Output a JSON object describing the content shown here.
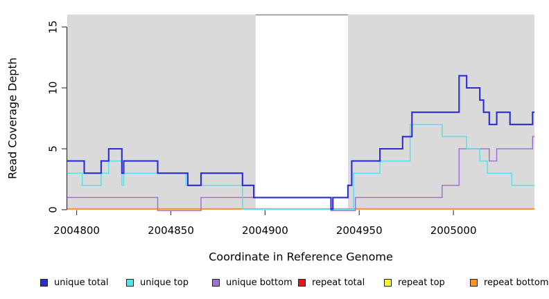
{
  "chart_data": {
    "type": "line",
    "subtype": "step",
    "title": "",
    "xlabel": "Coordinate in Reference Genome",
    "ylabel": "Read Coverage Depth",
    "xlim": [
      2004795,
      2005043
    ],
    "ylim": [
      0,
      16
    ],
    "xticks": [
      2004800,
      2004850,
      2004900,
      2004950,
      2005000
    ],
    "yticks": [
      0,
      5,
      10,
      15
    ],
    "grid": false,
    "plot_bg_color": "#dadada",
    "highlight_region": {
      "x1": 2004895,
      "x2": 2004944,
      "color": "#ffffff",
      "top_border_color": "#8a8a8a"
    },
    "legend_position": "bottom",
    "series": [
      {
        "name": "unique total",
        "color": "#2b2bd8",
        "steps": [
          [
            2004795,
            4
          ],
          [
            2004804,
            3
          ],
          [
            2004813,
            4
          ],
          [
            2004817,
            5
          ],
          [
            2004824,
            3
          ],
          [
            2004825,
            4
          ],
          [
            2004843,
            3
          ],
          [
            2004859,
            2
          ],
          [
            2004866,
            3
          ],
          [
            2004888,
            2
          ],
          [
            2004894,
            1
          ],
          [
            2004935,
            0
          ],
          [
            2004936,
            1
          ],
          [
            2004944,
            2
          ],
          [
            2004946,
            4
          ],
          [
            2004961,
            5
          ],
          [
            2004973,
            6
          ],
          [
            2004978,
            8
          ],
          [
            2005003,
            11
          ],
          [
            2005007,
            10
          ],
          [
            2005014,
            9
          ],
          [
            2005016,
            8
          ],
          [
            2005019,
            7
          ],
          [
            2005023,
            8
          ],
          [
            2005030,
            7
          ],
          [
            2005042,
            8
          ]
        ]
      },
      {
        "name": "unique top",
        "color": "#55e0ec",
        "steps": [
          [
            2004795,
            3
          ],
          [
            2004803,
            2
          ],
          [
            2004813,
            3
          ],
          [
            2004817,
            4
          ],
          [
            2004824,
            2
          ],
          [
            2004825,
            3
          ],
          [
            2004858,
            2
          ],
          [
            2004888,
            0
          ],
          [
            2004947,
            3
          ],
          [
            2004961,
            4
          ],
          [
            2004977,
            7
          ],
          [
            2004994,
            6
          ],
          [
            2005007,
            5
          ],
          [
            2005014,
            4
          ],
          [
            2005018,
            3
          ],
          [
            2005031,
            2
          ]
        ]
      },
      {
        "name": "unique bottom",
        "color": "#a36fd4",
        "steps": [
          [
            2004795,
            1
          ],
          [
            2004843,
            0
          ],
          [
            2004866,
            1
          ],
          [
            2004935,
            0
          ],
          [
            2004948,
            1
          ],
          [
            2004994,
            2
          ],
          [
            2005003,
            5
          ],
          [
            2005019,
            4
          ],
          [
            2005023,
            5
          ],
          [
            2005042,
            6
          ]
        ]
      },
      {
        "name": "repeat total",
        "color": "#e81717",
        "steps": [
          [
            2004795,
            0
          ]
        ]
      },
      {
        "name": "repeat top",
        "color": "#f6f62c",
        "steps": [
          [
            2004795,
            0
          ]
        ]
      },
      {
        "name": "repeat bottom",
        "color": "#ff9420",
        "steps": [
          [
            2004795,
            0
          ]
        ]
      }
    ],
    "baseline_overlap_segments": [
      {
        "x1": 2004895,
        "x2": 2004935,
        "color": "#84c984"
      },
      {
        "x1": 2004935,
        "x2": 2004948,
        "color": "#e07aa6"
      }
    ]
  }
}
